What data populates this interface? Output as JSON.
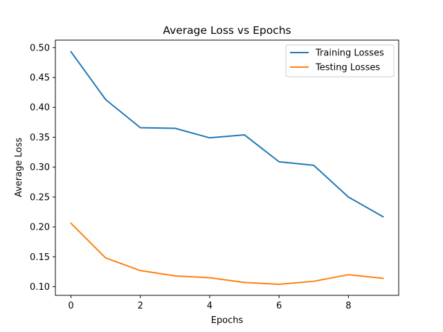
{
  "chart_data": {
    "type": "line",
    "title": "Average Loss vs Epochs",
    "xlabel": "Epochs",
    "ylabel": "Average Loss",
    "xlim": [
      -0.45,
      9.45
    ],
    "ylim": [
      0.0855,
      0.5125
    ],
    "xticks": [
      0,
      2,
      4,
      6,
      8
    ],
    "yticks": [
      0.1,
      0.15,
      0.2,
      0.25,
      0.3,
      0.35,
      0.4,
      0.45,
      0.5
    ],
    "ytick_labels": [
      "0.10",
      "0.15",
      "0.20",
      "0.25",
      "0.30",
      "0.35",
      "0.40",
      "0.45",
      "0.50"
    ],
    "grid": false,
    "legend_position": "top-right",
    "x": [
      0,
      1,
      2,
      3,
      4,
      5,
      6,
      7,
      8,
      9
    ],
    "series": [
      {
        "name": "Training Losses",
        "color": "#1f77b4",
        "values": [
          0.493,
          0.413,
          0.366,
          0.365,
          0.349,
          0.354,
          0.309,
          0.303,
          0.25,
          0.217
        ]
      },
      {
        "name": "Testing Losses",
        "color": "#ff7f0e",
        "values": [
          0.206,
          0.148,
          0.127,
          0.118,
          0.115,
          0.107,
          0.104,
          0.109,
          0.12,
          0.114
        ]
      }
    ]
  }
}
